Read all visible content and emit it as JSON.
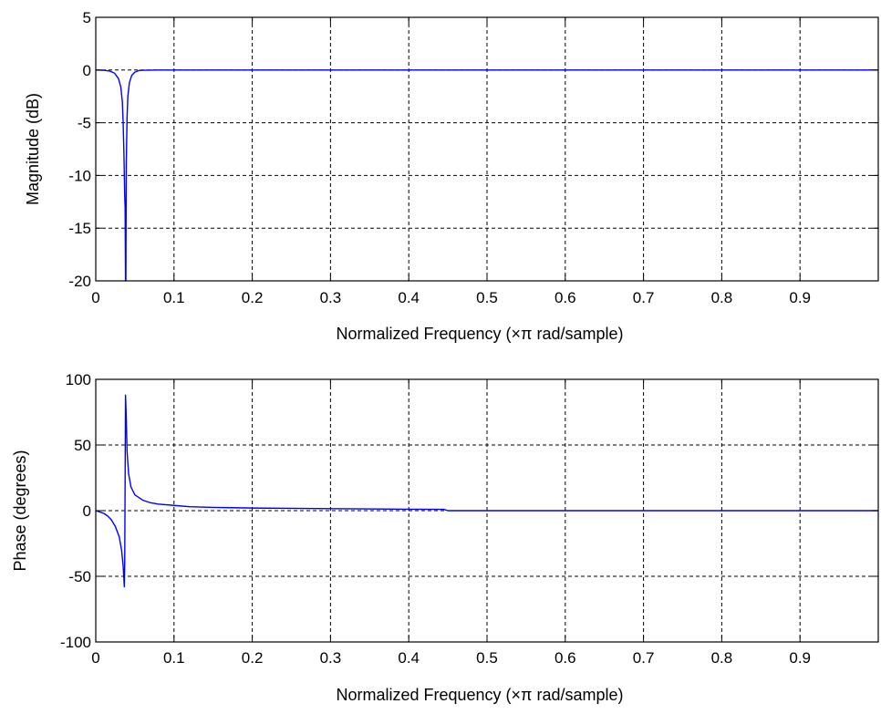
{
  "chart_data": [
    {
      "type": "line",
      "title": "",
      "xlabel": "Normalized Frequency  (×π rad/sample)",
      "ylabel": "Magnitude (dB)",
      "xlim": [
        0,
        1
      ],
      "ylim": [
        -20,
        5
      ],
      "xticks": [
        0,
        0.1,
        0.2,
        0.3,
        0.4,
        0.5,
        0.6,
        0.7,
        0.8,
        0.9
      ],
      "xtick_labels": [
        "0",
        "0.1",
        "0.2",
        "0.3",
        "0.4",
        "0.5",
        "0.6",
        "0.7",
        "0.8",
        "0.9"
      ],
      "yticks": [
        5,
        0,
        -5,
        -10,
        -15,
        -20
      ],
      "ytick_labels": [
        "5",
        "0",
        "-5",
        "-10",
        "-15",
        "-20"
      ],
      "grid": true,
      "line_color": "#0000ff",
      "series": [
        {
          "x": [
            0,
            0.01,
            0.018,
            0.024,
            0.029,
            0.032,
            0.034,
            0.035,
            0.036,
            0.037,
            0.0375,
            0.038,
            0.0385,
            0.039,
            0.04,
            0.041,
            0.043,
            0.046,
            0.05,
            0.055,
            0.06,
            0.08,
            0.1,
            0.15,
            0.2,
            0.3,
            0.4,
            0.5,
            0.6,
            0.7,
            0.8,
            0.9,
            1.0
          ],
          "y": [
            0,
            -0.02,
            -0.1,
            -0.3,
            -0.8,
            -1.6,
            -3.0,
            -5.0,
            -8.0,
            -12.0,
            -13.0,
            -20.0,
            -20.0,
            -9.0,
            -4.5,
            -2.5,
            -1.2,
            -0.5,
            -0.2,
            -0.05,
            -0.02,
            0,
            0,
            0,
            0,
            0,
            0,
            0,
            0,
            0,
            0,
            0,
            0
          ]
        }
      ]
    },
    {
      "type": "line",
      "title": "",
      "xlabel": "Normalized Frequency  (×π rad/sample)",
      "ylabel": "Phase (degrees)",
      "xlim": [
        0,
        1
      ],
      "ylim": [
        -100,
        100
      ],
      "xticks": [
        0,
        0.1,
        0.2,
        0.3,
        0.4,
        0.5,
        0.6,
        0.7,
        0.8,
        0.9
      ],
      "xtick_labels": [
        "0",
        "0.1",
        "0.2",
        "0.3",
        "0.4",
        "0.5",
        "0.6",
        "0.7",
        "0.8",
        "0.9"
      ],
      "yticks": [
        100,
        50,
        0,
        -50,
        -100
      ],
      "ytick_labels": [
        "100",
        "50",
        "0",
        "-50",
        "-100"
      ],
      "grid": true,
      "line_color": "#0000ff",
      "series": [
        {
          "x": [
            0,
            0.005,
            0.01,
            0.015,
            0.02,
            0.025,
            0.03,
            0.033,
            0.035,
            0.0365,
            0.037,
            0.0375,
            0.038,
            0.0385,
            0.039,
            0.04,
            0.042,
            0.045,
            0.05,
            0.06,
            0.07,
            0.08,
            0.1,
            0.12,
            0.15,
            0.2,
            0.3,
            0.4,
            0.445,
            0.45,
            0.6,
            0.8,
            1.0
          ],
          "y": [
            0,
            -1,
            -2,
            -4,
            -7,
            -12,
            -20,
            -30,
            -42,
            -58,
            -40,
            20,
            88,
            80,
            70,
            45,
            28,
            18,
            12,
            8,
            6,
            5,
            4,
            3,
            2.5,
            2,
            1.5,
            1.1,
            1,
            0,
            0,
            0,
            0
          ]
        }
      ]
    }
  ]
}
